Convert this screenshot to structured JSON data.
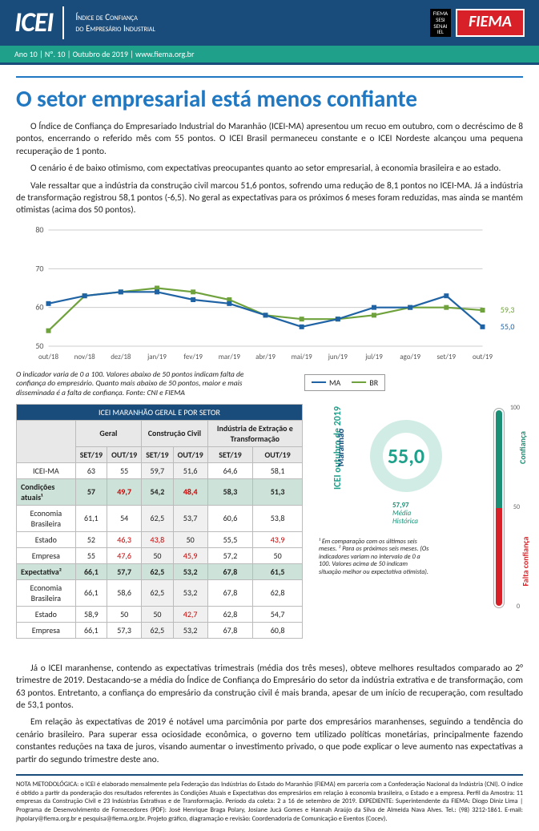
{
  "header": {
    "logo": "ICEI",
    "subtitle_l1": "Índice de Confiança",
    "subtitle_l2": "do Empresário Industrial",
    "small_logo": "FIEMA\nSESI\nSENAI\nIEL",
    "fiema": "FIEMA"
  },
  "greenbar": "Ano 10 | Nº. 10 | Outubro de 2019 | www.fiema.org.br",
  "title": "O setor empresarial está menos confiante",
  "para1": "O Índice de Confiança do Empresariado Industrial do Maranhão (ICEI-MA) apresentou um recuo em outubro, com o decréscimo de 8 pontos, encerrando o referido mês com 55 pontos. O ICEI Brasil permaneceu constante e o ICEI Nordeste alcançou uma pequena recuperação de 1 ponto.",
  "para2": "O cenário é de baixo otimismo, com expectativas preocupantes quanto ao setor empresarial, à economia brasileira e ao estado.",
  "para3": "Vale ressaltar que a indústria da construção civil marcou 51,6 pontos, sofrendo uma redução de 8,1 pontos no ICEI-MA. Já a indústria de transformação registrou 58,1 pontos (-6,5). No geral as expectativas para os próximos 6 meses foram reduzidas, mas ainda se mantém otimistas (acima dos 50 pontos).",
  "chart": {
    "ymin": 50,
    "ymax": 80,
    "yticks": [
      50,
      60,
      70,
      80
    ],
    "months": [
      "out/18",
      "nov/18",
      "dez/18",
      "jan/19",
      "fev/19",
      "mar/19",
      "abr/19",
      "mai/19",
      "jun/19",
      "jul/19",
      "ago/19",
      "set/19",
      "out/19"
    ],
    "ma": [
      61,
      63,
      64,
      64,
      62,
      61,
      58,
      55,
      57,
      60,
      60,
      63,
      55
    ],
    "br": [
      54,
      63,
      64,
      65,
      64,
      62,
      58,
      57,
      57,
      58,
      60,
      60,
      59.3
    ],
    "ma_color": "#1f63a5",
    "br_color": "#6fa23c",
    "end_labels": {
      "br": "59,3",
      "ma": "55,0"
    }
  },
  "note": "O indicador varia de 0 a 100. Valores abaixo de 50 pontos indicam falta de confiança do empresário. Quanto mais abaixo de 50 pontos, maior e mais disseminada é a falta de confiança. Fonte: CNI e FIEMA",
  "legend": {
    "ma": "MA",
    "br": "BR"
  },
  "table": {
    "title": "ICEI MARANHÃO GERAL E POR SETOR",
    "groups": [
      "Geral",
      "Construção Civil",
      "Indústria de Extração e Transformação"
    ],
    "cols": [
      "SET/19",
      "OUT/19",
      "SET/19",
      "OUT/19",
      "SET/19",
      "OUT/19"
    ],
    "rows": [
      {
        "label": "ICEI-MA",
        "vals": [
          "63",
          "55",
          "59,7",
          "51,6",
          "64,6",
          "58,1"
        ],
        "red": []
      },
      {
        "label": "Condições atuais¹",
        "vals": [
          "57",
          "49,7",
          "54,2",
          "48,4",
          "58,3",
          "51,3"
        ],
        "red": [
          1,
          3
        ],
        "section": true
      },
      {
        "label": "Economia Brasileira",
        "vals": [
          "61,1",
          "54",
          "62,5",
          "53,7",
          "60,6",
          "53,8"
        ],
        "red": []
      },
      {
        "label": "Estado",
        "vals": [
          "52",
          "46,3",
          "43,8",
          "50",
          "55,5",
          "43,9"
        ],
        "red": [
          1,
          2,
          5
        ]
      },
      {
        "label": "Empresa",
        "vals": [
          "55",
          "47,6",
          "50",
          "45,9",
          "57,2",
          "50"
        ],
        "red": [
          1,
          3
        ]
      },
      {
        "label": "Expectativa²",
        "vals": [
          "66,1",
          "57,7",
          "62,5",
          "53,2",
          "67,8",
          "61,5"
        ],
        "red": [],
        "section": true
      },
      {
        "label": "Economia Brasileira",
        "vals": [
          "66,1",
          "58,6",
          "62,5",
          "53,2",
          "67,8",
          "62,8"
        ],
        "red": []
      },
      {
        "label": "Estado",
        "vals": [
          "58,9",
          "50",
          "50",
          "42,7",
          "62,8",
          "54,7"
        ],
        "red": [
          3
        ]
      },
      {
        "label": "Empresa",
        "vals": [
          "66,1",
          "57,3",
          "62,5",
          "53,2",
          "67,8",
          "60,8"
        ],
        "red": []
      }
    ]
  },
  "gauge": {
    "vert1": "ICEI  outubro de 2019",
    "vert2": "Maranhão",
    "value": "55,0",
    "hist_val": "57,97",
    "hist_lbl": "Média\nHistórica",
    "ticks": [
      "100",
      "50",
      "0"
    ],
    "conf": "Confiança",
    "falta": "Falta confiança",
    "note": "¹ Em comparação com os últimos seis meses. ² Para os próximos seis meses. (Os indicadores variam no intervalo de 0 a 100. Valores acima de 50 indicam situação melhor ou expectativa otimista)."
  },
  "para4": "Já o ICEI maranhense, contendo as expectativas trimestrais (média dos três meses), obteve melhores resultados comparado ao 2° trimestre de 2019. Destacando-se a média do Índice de Confiança do Empresário do setor da indústria extrativa e de transformação, com 63 pontos. Entretanto, a confiança do empresário da construção civil é mais branda, apesar de um início de recuperação, com resultado de 53,1 pontos.",
  "para5": "Em relação às expectativas de 2019 é notável uma parcimônia por parte dos empresários maranhenses, seguindo a tendência do cenário brasileiro. Para superar essa ociosidade econômica, o governo tem utilizado políticas monetárias, principalmente fazendo constantes reduções na taxa de juros, visando aumentar o investimento privado, o que pode explicar o leve aumento nas expectativas a partir do segundo trimestre deste ano.",
  "footer": "NOTA METODOLÓGICA: o ICEI é elaborado mensalmente pela Federação das Indústrias do Estado do Maranhão (FIEMA) em parceria com a Confederação Nacional da Indústria (CNI). O índice é obtido a partir da ponderação dos resultados referentes às Condições Atuais e Expectativas dos empresários em relação à economia brasileira, o Estado e a empresa. Perfil da Amostra: 11 empresas da Construção Civil e 23 Indústrias Extrativas e de Transformação. Período da coleta: 2 a 16 de setembro de 2019. EXPEDIENTE: Superintendente da FIEMA: Diogo Diniz Lima | Programa de Desenvolvimento de Fornecedores (PDF): José Henrique Braga Polary, Josiane Jucá Gomes e Hannah Araújo da Silva de Almeida Nava Alves. Tel.: (98) 3212-1861. E-mail: jhpolary@fiema.org.br e pesquisa@fiema.org.br. Projeto gráfico, diagramação e revisão: Coordenadoria de Comunicação e Eventos (Cocev)."
}
